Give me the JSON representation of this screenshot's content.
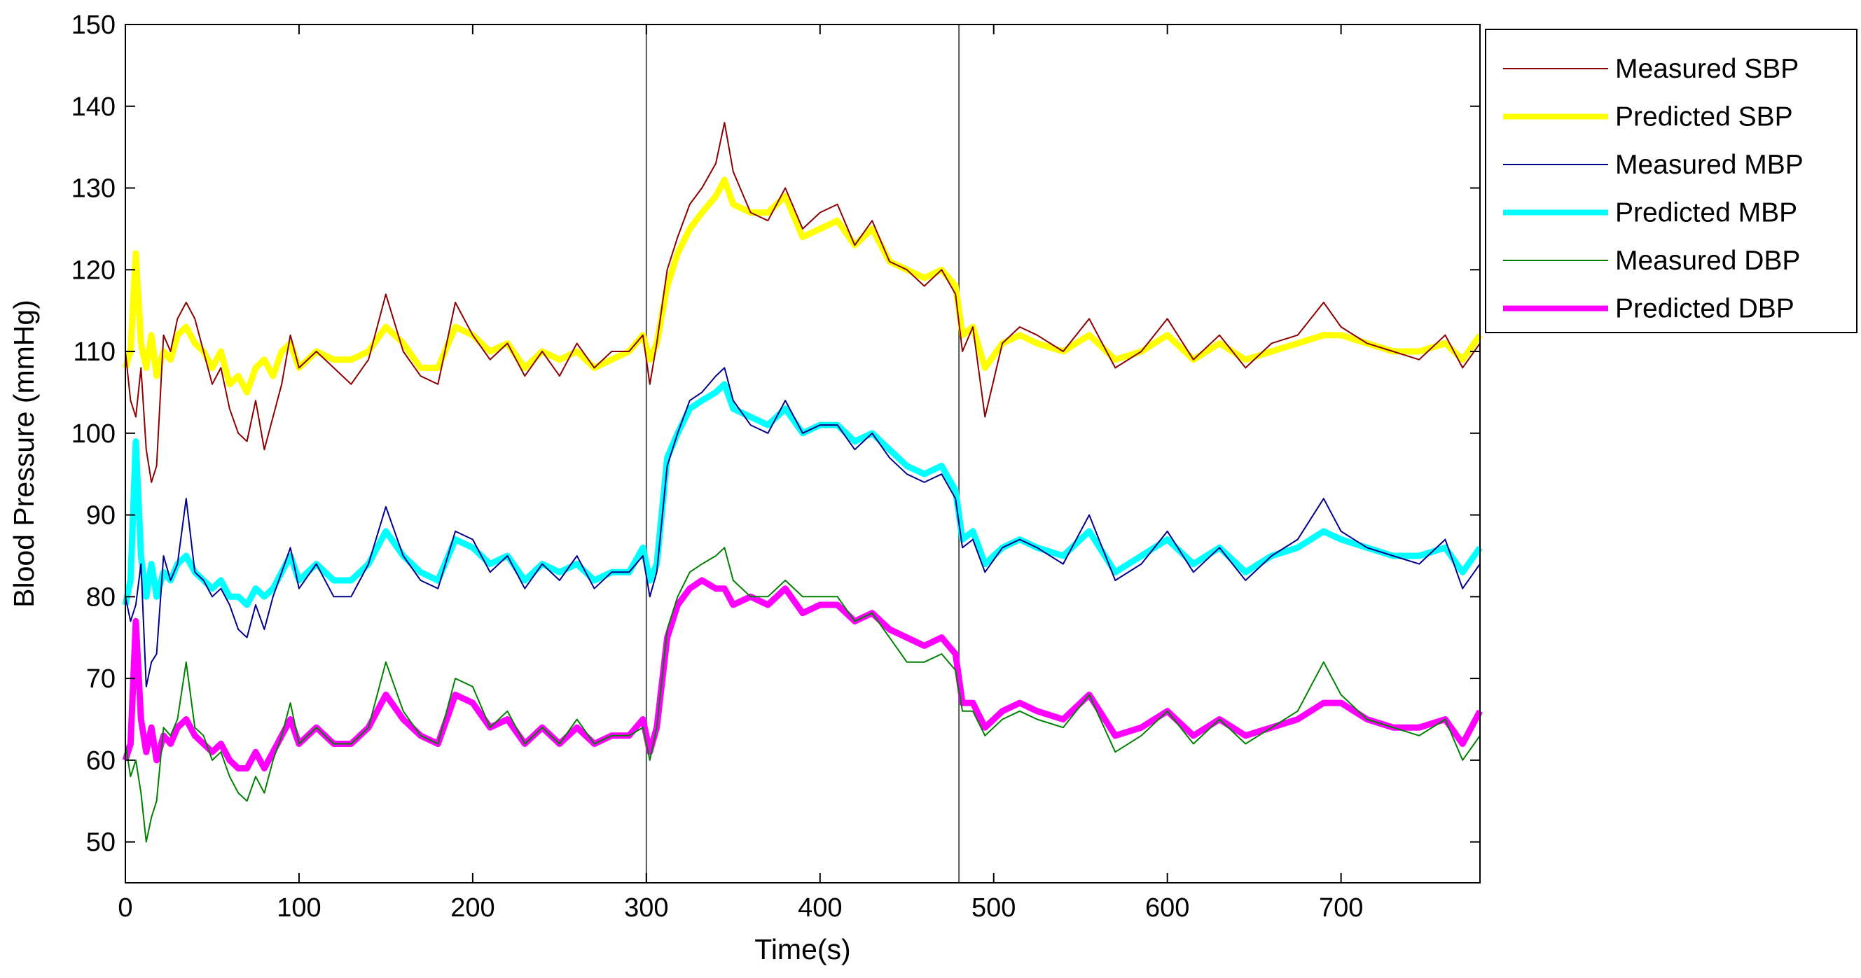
{
  "chart_data": {
    "type": "line",
    "xlabel": "Time(s)",
    "ylabel": "Blood Pressure (mmHg)",
    "xlim": [
      0,
      780
    ],
    "ylim": [
      45,
      150
    ],
    "xticks": [
      0,
      100,
      200,
      300,
      400,
      500,
      600,
      700
    ],
    "yticks": [
      50,
      60,
      70,
      80,
      90,
      100,
      110,
      120,
      130,
      140,
      150
    ],
    "grid": false,
    "legend_position": "outside-right-top",
    "vertical_markers": [
      300,
      480
    ],
    "series": [
      {
        "name": "Measured SBP",
        "color": "#8b0000",
        "style": "thin",
        "x": [
          0,
          3,
          6,
          9,
          12,
          15,
          18,
          22,
          26,
          30,
          35,
          40,
          45,
          50,
          55,
          60,
          65,
          70,
          75,
          80,
          85,
          90,
          95,
          100,
          110,
          120,
          130,
          140,
          150,
          160,
          170,
          180,
          190,
          200,
          210,
          220,
          230,
          240,
          250,
          260,
          270,
          280,
          290,
          298,
          302,
          306,
          312,
          318,
          325,
          332,
          340,
          345,
          350,
          360,
          370,
          380,
          390,
          400,
          410,
          420,
          430,
          440,
          450,
          460,
          470,
          478,
          482,
          488,
          495,
          505,
          515,
          525,
          540,
          555,
          570,
          585,
          600,
          615,
          630,
          645,
          660,
          675,
          690,
          700,
          715,
          730,
          745,
          760,
          770,
          780
        ],
        "y": [
          110,
          104,
          102,
          108,
          98,
          94,
          96,
          112,
          110,
          114,
          116,
          114,
          110,
          106,
          108,
          103,
          100,
          99,
          104,
          98,
          102,
          106,
          112,
          108,
          110,
          108,
          106,
          109,
          117,
          110,
          107,
          106,
          116,
          112,
          109,
          111,
          107,
          110,
          107,
          111,
          108,
          110,
          110,
          112,
          106,
          111,
          120,
          124,
          128,
          130,
          133,
          138,
          132,
          127,
          126,
          130,
          125,
          127,
          128,
          123,
          126,
          121,
          120,
          118,
          120,
          117,
          110,
          113,
          102,
          111,
          113,
          112,
          110,
          114,
          108,
          110,
          114,
          109,
          112,
          108,
          111,
          112,
          116,
          113,
          111,
          110,
          109,
          112,
          108,
          111
        ]
      },
      {
        "name": "Predicted SBP",
        "color": "#ffff00",
        "style": "thick",
        "x": [
          0,
          3,
          6,
          9,
          12,
          15,
          18,
          22,
          26,
          30,
          35,
          40,
          45,
          50,
          55,
          60,
          65,
          70,
          75,
          80,
          85,
          90,
          95,
          100,
          110,
          120,
          130,
          140,
          150,
          160,
          170,
          180,
          190,
          200,
          210,
          220,
          230,
          240,
          250,
          260,
          270,
          280,
          290,
          298,
          302,
          306,
          312,
          318,
          325,
          332,
          340,
          345,
          350,
          360,
          370,
          380,
          390,
          400,
          410,
          420,
          430,
          440,
          450,
          460,
          470,
          478,
          482,
          488,
          495,
          505,
          515,
          525,
          540,
          555,
          570,
          585,
          600,
          615,
          630,
          645,
          660,
          675,
          690,
          700,
          715,
          730,
          745,
          760,
          770,
          780
        ],
        "y": [
          108,
          110,
          122,
          111,
          108,
          112,
          107,
          110,
          109,
          112,
          113,
          111,
          110,
          108,
          110,
          106,
          107,
          105,
          108,
          109,
          107,
          110,
          111,
          108,
          110,
          109,
          109,
          110,
          113,
          111,
          108,
          108,
          113,
          112,
          110,
          111,
          108,
          110,
          109,
          110,
          108,
          109,
          110,
          112,
          109,
          111,
          118,
          122,
          125,
          127,
          129,
          131,
          128,
          127,
          127,
          129,
          124,
          125,
          126,
          123,
          125,
          121,
          120,
          119,
          120,
          118,
          112,
          113,
          108,
          111,
          112,
          111,
          110,
          112,
          109,
          110,
          112,
          109,
          111,
          109,
          110,
          111,
          112,
          112,
          111,
          110,
          110,
          111,
          109,
          112
        ]
      },
      {
        "name": "Measured MBP",
        "color": "#00008b",
        "style": "thin",
        "x": [
          0,
          3,
          6,
          9,
          12,
          15,
          18,
          22,
          26,
          30,
          35,
          40,
          45,
          50,
          55,
          60,
          65,
          70,
          75,
          80,
          85,
          90,
          95,
          100,
          110,
          120,
          130,
          140,
          150,
          160,
          170,
          180,
          190,
          200,
          210,
          220,
          230,
          240,
          250,
          260,
          270,
          280,
          290,
          298,
          302,
          306,
          312,
          318,
          325,
          332,
          340,
          345,
          350,
          360,
          370,
          380,
          390,
          400,
          410,
          420,
          430,
          440,
          450,
          460,
          470,
          478,
          482,
          488,
          495,
          505,
          515,
          525,
          540,
          555,
          570,
          585,
          600,
          615,
          630,
          645,
          660,
          675,
          690,
          700,
          715,
          730,
          745,
          760,
          770,
          780
        ],
        "y": [
          80,
          77,
          79,
          84,
          69,
          72,
          73,
          85,
          82,
          84,
          92,
          83,
          82,
          80,
          81,
          79,
          76,
          75,
          79,
          76,
          80,
          83,
          86,
          81,
          84,
          80,
          80,
          84,
          91,
          85,
          82,
          81,
          88,
          87,
          83,
          85,
          81,
          84,
          82,
          85,
          81,
          83,
          83,
          85,
          80,
          83,
          96,
          100,
          104,
          105,
          107,
          108,
          104,
          101,
          100,
          104,
          100,
          101,
          101,
          98,
          100,
          97,
          95,
          94,
          95,
          92,
          86,
          87,
          83,
          86,
          87,
          86,
          84,
          90,
          82,
          84,
          88,
          83,
          86,
          82,
          85,
          87,
          92,
          88,
          86,
          85,
          84,
          87,
          81,
          84
        ]
      },
      {
        "name": "Predicted MBP",
        "color": "#00ffff",
        "style": "thick",
        "x": [
          0,
          3,
          6,
          9,
          12,
          15,
          18,
          22,
          26,
          30,
          35,
          40,
          45,
          50,
          55,
          60,
          65,
          70,
          75,
          80,
          85,
          90,
          95,
          100,
          110,
          120,
          130,
          140,
          150,
          160,
          170,
          180,
          190,
          200,
          210,
          220,
          230,
          240,
          250,
          260,
          270,
          280,
          290,
          298,
          302,
          306,
          312,
          318,
          325,
          332,
          340,
          345,
          350,
          360,
          370,
          380,
          390,
          400,
          410,
          420,
          430,
          440,
          450,
          460,
          470,
          478,
          482,
          488,
          495,
          505,
          515,
          525,
          540,
          555,
          570,
          585,
          600,
          615,
          630,
          645,
          660,
          675,
          690,
          700,
          715,
          730,
          745,
          760,
          770,
          780
        ],
        "y": [
          79,
          82,
          99,
          85,
          80,
          84,
          80,
          83,
          82,
          84,
          85,
          83,
          82,
          81,
          82,
          80,
          80,
          79,
          81,
          80,
          81,
          83,
          85,
          82,
          84,
          82,
          82,
          84,
          88,
          85,
          83,
          82,
          87,
          86,
          84,
          85,
          82,
          84,
          83,
          84,
          82,
          83,
          83,
          86,
          82,
          84,
          97,
          100,
          103,
          104,
          105,
          106,
          103,
          102,
          101,
          103,
          100,
          101,
          101,
          99,
          100,
          98,
          96,
          95,
          96,
          93,
          87,
          88,
          84,
          86,
          87,
          86,
          85,
          88,
          83,
          85,
          87,
          84,
          86,
          83,
          85,
          86,
          88,
          87,
          86,
          85,
          85,
          86,
          83,
          86
        ]
      },
      {
        "name": "Measured DBP",
        "color": "#008000",
        "style": "thin",
        "x": [
          0,
          3,
          6,
          9,
          12,
          15,
          18,
          22,
          26,
          30,
          35,
          40,
          45,
          50,
          55,
          60,
          65,
          70,
          75,
          80,
          85,
          90,
          95,
          100,
          110,
          120,
          130,
          140,
          150,
          160,
          170,
          180,
          190,
          200,
          210,
          220,
          230,
          240,
          250,
          260,
          270,
          280,
          290,
          298,
          302,
          306,
          312,
          318,
          325,
          332,
          340,
          345,
          350,
          360,
          370,
          380,
          390,
          400,
          410,
          420,
          430,
          440,
          450,
          460,
          470,
          478,
          482,
          488,
          495,
          505,
          515,
          525,
          540,
          555,
          570,
          585,
          600,
          615,
          630,
          645,
          660,
          675,
          690,
          700,
          715,
          730,
          745,
          760,
          770,
          780
        ],
        "y": [
          62,
          58,
          60,
          56,
          50,
          53,
          55,
          64,
          63,
          65,
          72,
          64,
          63,
          60,
          61,
          58,
          56,
          55,
          58,
          56,
          60,
          63,
          67,
          62,
          64,
          62,
          62,
          64,
          72,
          66,
          63,
          62,
          70,
          69,
          64,
          66,
          62,
          64,
          62,
          65,
          62,
          63,
          63,
          64,
          60,
          64,
          76,
          80,
          83,
          84,
          85,
          86,
          82,
          80,
          80,
          82,
          80,
          80,
          80,
          77,
          78,
          75,
          72,
          72,
          73,
          71,
          66,
          66,
          63,
          65,
          66,
          65,
          64,
          68,
          61,
          63,
          66,
          62,
          65,
          62,
          64,
          66,
          72,
          68,
          65,
          64,
          63,
          65,
          60,
          63
        ]
      },
      {
        "name": "Predicted DBP",
        "color": "#ff00ff",
        "style": "thick",
        "x": [
          0,
          3,
          6,
          9,
          12,
          15,
          18,
          22,
          26,
          30,
          35,
          40,
          45,
          50,
          55,
          60,
          65,
          70,
          75,
          80,
          85,
          90,
          95,
          100,
          110,
          120,
          130,
          140,
          150,
          160,
          170,
          180,
          190,
          200,
          210,
          220,
          230,
          240,
          250,
          260,
          270,
          280,
          290,
          298,
          302,
          306,
          312,
          318,
          325,
          332,
          340,
          345,
          350,
          360,
          370,
          380,
          390,
          400,
          410,
          420,
          430,
          440,
          450,
          460,
          470,
          478,
          482,
          488,
          495,
          505,
          515,
          525,
          540,
          555,
          570,
          585,
          600,
          615,
          630,
          645,
          660,
          675,
          690,
          700,
          715,
          730,
          745,
          760,
          770,
          780
        ],
        "y": [
          60,
          62,
          77,
          65,
          61,
          64,
          60,
          63,
          62,
          64,
          65,
          63,
          62,
          61,
          62,
          60,
          59,
          59,
          61,
          59,
          61,
          63,
          65,
          62,
          64,
          62,
          62,
          64,
          68,
          65,
          63,
          62,
          68,
          67,
          64,
          65,
          62,
          64,
          62,
          64,
          62,
          63,
          63,
          65,
          61,
          64,
          75,
          79,
          81,
          82,
          81,
          81,
          79,
          80,
          79,
          81,
          78,
          79,
          79,
          77,
          78,
          76,
          75,
          74,
          75,
          73,
          67,
          67,
          64,
          66,
          67,
          66,
          65,
          68,
          63,
          64,
          66,
          63,
          65,
          63,
          64,
          65,
          67,
          67,
          65,
          64,
          64,
          65,
          62,
          66
        ]
      }
    ]
  }
}
